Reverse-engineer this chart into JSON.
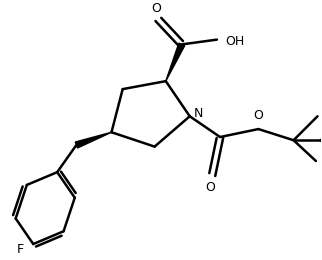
{
  "bg_color": "#ffffff",
  "line_color": "#000000",
  "line_width": 1.8,
  "figsize": [
    3.22,
    2.6
  ],
  "dpi": 100,
  "xlim": [
    0,
    10
  ],
  "ylim": [
    0,
    8
  ]
}
